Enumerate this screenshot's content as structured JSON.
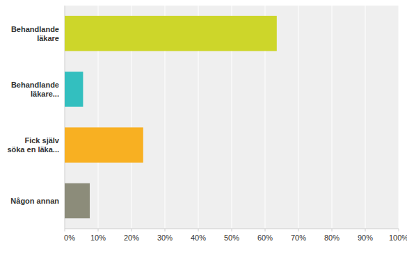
{
  "chart_data": {
    "type": "bar",
    "orientation": "horizontal",
    "categories": [
      "Behandlande läkare",
      "Behandlande läkare...",
      "Fick själv söka en läka...",
      "Någon annan"
    ],
    "values": [
      63.5,
      5.5,
      23.5,
      7.5
    ],
    "colors": [
      "#cdd62a",
      "#33bfbf",
      "#f8b022",
      "#8c8c7a"
    ],
    "xlim": [
      0,
      100
    ],
    "xticks": [
      {
        "value": 0,
        "label": "0%"
      },
      {
        "value": 10,
        "label": "10%"
      },
      {
        "value": 20,
        "label": "20%"
      },
      {
        "value": 30,
        "label": "30%"
      },
      {
        "value": 40,
        "label": "40%"
      },
      {
        "value": 50,
        "label": "50%"
      },
      {
        "value": 60,
        "label": "60%"
      },
      {
        "value": 70,
        "label": "70%"
      },
      {
        "value": 80,
        "label": "80%"
      },
      {
        "value": 90,
        "label": "90%"
      },
      {
        "value": 100,
        "label": "100%"
      }
    ],
    "grid": true
  }
}
